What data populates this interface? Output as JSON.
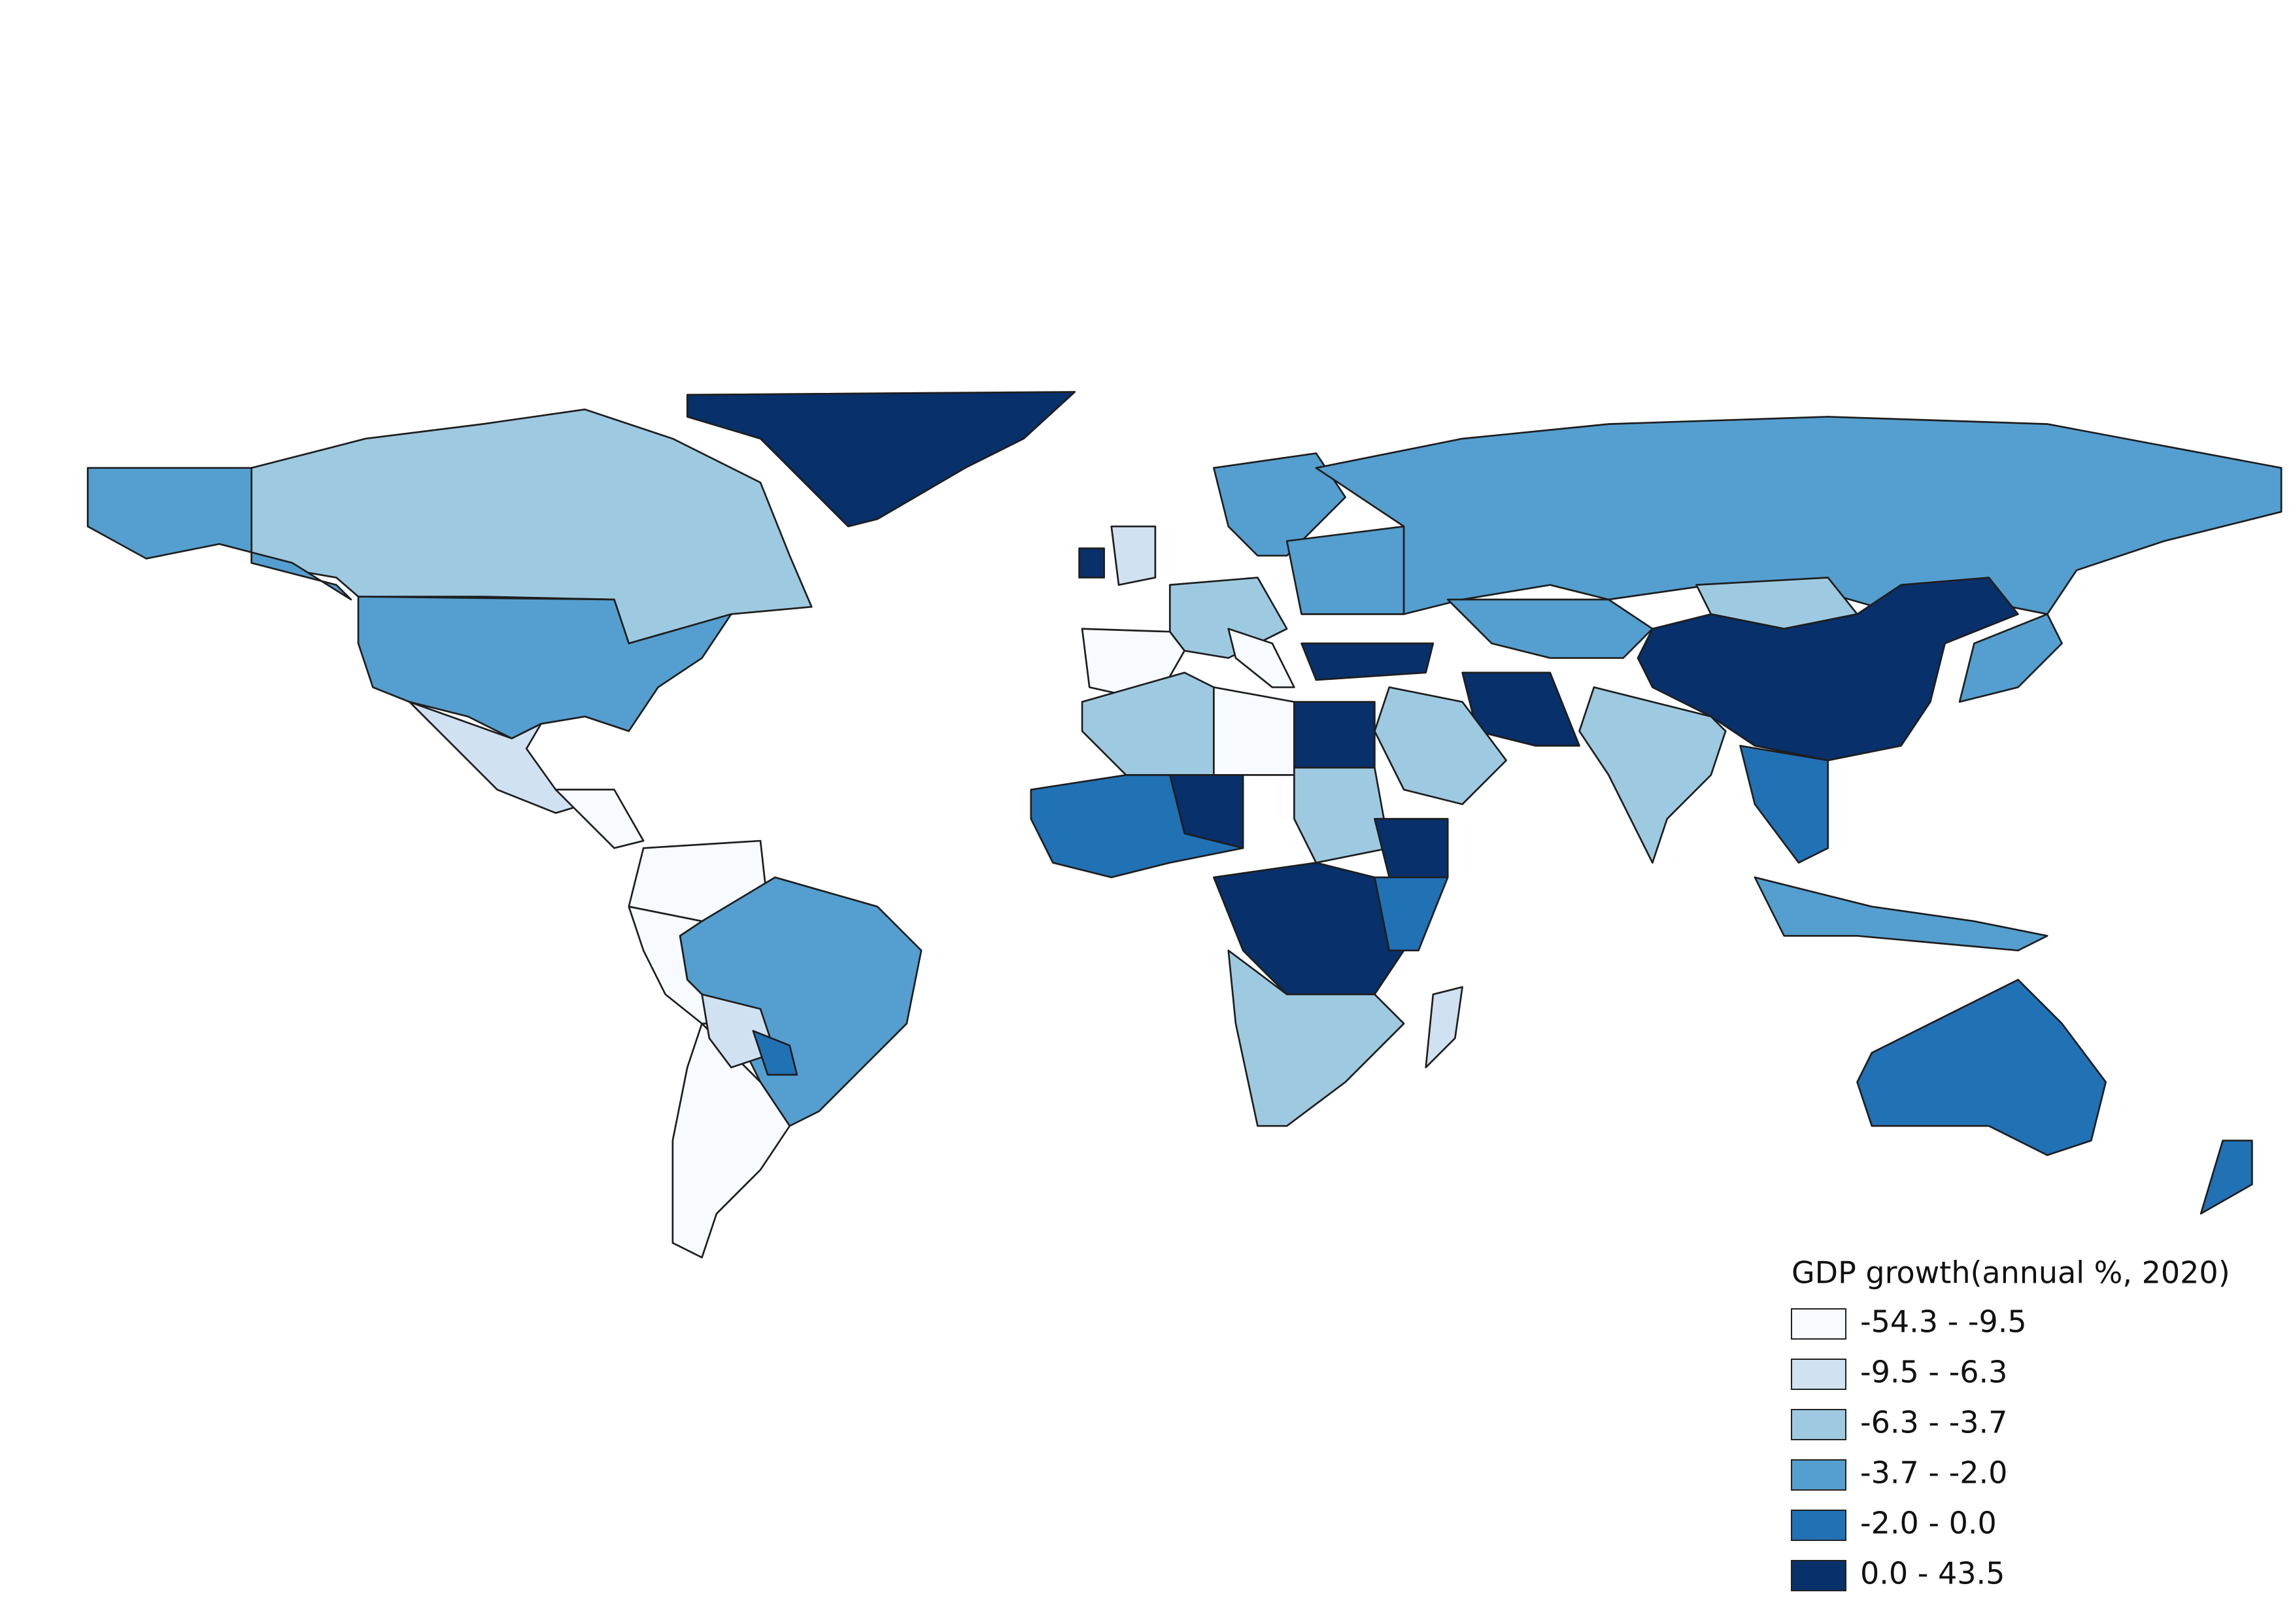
{
  "legend": {
    "title": "GDP growth(annual %, 2020)",
    "items": [
      {
        "label": "-54.3 - -9.5",
        "color": "#f7fbff"
      },
      {
        "label": "-9.5 - -6.3",
        "color": "#d0e1f2"
      },
      {
        "label": "-6.3 - -3.7",
        "color": "#9ecae1"
      },
      {
        "label": "-3.7 - -2.0",
        "color": "#549fcf"
      },
      {
        "label": "-2.0 - 0.0",
        "color": "#2171b5"
      },
      {
        "label": "0.0 - 43.5",
        "color": "#08306b"
      }
    ]
  }
}
